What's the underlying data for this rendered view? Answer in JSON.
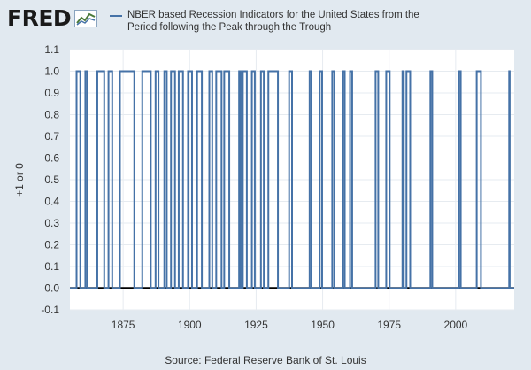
{
  "brand": {
    "logo_text": "FRED",
    "logo_icon": "line-chart-icon"
  },
  "colors": {
    "background": "#e1e9f0",
    "plot_background": "#ffffff",
    "series": "#4572a7",
    "grid": "#ffffff",
    "baseline": "#000000"
  },
  "source_text": "Source: Federal Reserve Bank of St. Louis",
  "chart_data": {
    "type": "line",
    "title": "",
    "ylabel": "+1 or 0",
    "xlabel": "",
    "xlim": [
      1855,
      2022
    ],
    "ylim": [
      -0.1,
      1.1
    ],
    "yticks": [
      -0.1,
      0.0,
      0.1,
      0.2,
      0.3,
      0.4,
      0.5,
      0.6,
      0.7,
      0.8,
      0.9,
      1.0,
      1.1
    ],
    "ytick_labels": [
      "-0.1",
      "0.0",
      "0.1",
      "0.2",
      "0.3",
      "0.4",
      "0.5",
      "0.6",
      "0.7",
      "0.8",
      "0.9",
      "1.0",
      "1.1"
    ],
    "xticks": [
      1875,
      1900,
      1925,
      1950,
      1975,
      2000
    ],
    "xtick_labels": [
      "1875",
      "1900",
      "1925",
      "1950",
      "1975",
      "2000"
    ],
    "grid": true,
    "legend_placement": "top",
    "series": [
      {
        "name": "NBER based Recession Indicators for the United States from the Period following the Peak through the Trough",
        "recession_periods": [
          [
            1857.5,
            1858.9
          ],
          [
            1860.8,
            1861.5
          ],
          [
            1865.3,
            1867.9
          ],
          [
            1869.5,
            1870.9
          ],
          [
            1873.8,
            1879.2
          ],
          [
            1882.2,
            1885.4
          ],
          [
            1887.2,
            1888.3
          ],
          [
            1890.5,
            1891.4
          ],
          [
            1893.0,
            1894.5
          ],
          [
            1895.9,
            1897.5
          ],
          [
            1899.4,
            1900.9
          ],
          [
            1902.8,
            1904.6
          ],
          [
            1907.4,
            1908.5
          ],
          [
            1910.0,
            1912.0
          ],
          [
            1913.0,
            1914.9
          ],
          [
            1918.6,
            1919.2
          ],
          [
            1920.0,
            1921.5
          ],
          [
            1923.4,
            1924.5
          ],
          [
            1926.8,
            1927.9
          ],
          [
            1929.6,
            1933.2
          ],
          [
            1937.4,
            1938.5
          ],
          [
            1945.1,
            1945.8
          ],
          [
            1948.9,
            1949.8
          ],
          [
            1953.6,
            1954.4
          ],
          [
            1957.6,
            1958.3
          ],
          [
            1960.3,
            1961.1
          ],
          [
            1969.9,
            1970.9
          ],
          [
            1973.9,
            1975.2
          ],
          [
            1980.0,
            1980.5
          ],
          [
            1981.5,
            1982.9
          ],
          [
            1990.5,
            1991.2
          ],
          [
            2001.2,
            2001.9
          ],
          [
            2007.9,
            2009.5
          ],
          [
            2020.1,
            2020.3
          ]
        ]
      }
    ]
  }
}
